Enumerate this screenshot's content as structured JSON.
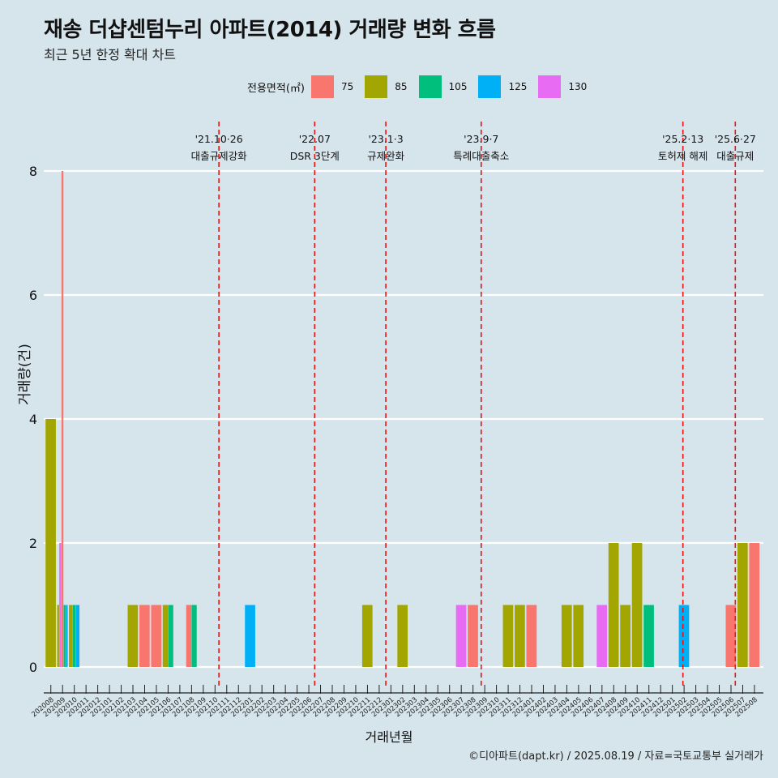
{
  "header": {
    "title": "재송 더샵센텀누리 아파트(2014) 거래량 변화 흐름",
    "subtitle": "최근 5년 한정 확대 차트"
  },
  "legend": {
    "title": "전용면적(㎡)",
    "items": [
      {
        "label": "75",
        "color": "#f8766d"
      },
      {
        "label": "85",
        "color": "#a3a500"
      },
      {
        "label": "105",
        "color": "#00bf7d"
      },
      {
        "label": "125",
        "color": "#00b0f6"
      },
      {
        "label": "130",
        "color": "#e76bf3"
      }
    ]
  },
  "caption": "©디아파트(dapt.kr) / 2025.08.19 / 자료=국토교통부 실거래가",
  "chart_data": {
    "type": "bar",
    "xlabel": "거래년월",
    "ylabel": "거래량(건)",
    "ylim": [
      0,
      8
    ],
    "yticks": [
      0,
      2,
      4,
      6,
      8
    ],
    "grid": true,
    "legend_position": "top",
    "categories": [
      "202008",
      "202009",
      "202010",
      "202011",
      "202012",
      "202101",
      "202102",
      "202103",
      "202104",
      "202105",
      "202106",
      "202107",
      "202108",
      "202109",
      "202110",
      "202111",
      "202112",
      "202201",
      "202202",
      "202203",
      "202204",
      "202205",
      "202206",
      "202207",
      "202208",
      "202209",
      "202210",
      "202211",
      "202212",
      "202301",
      "202302",
      "202303",
      "202304",
      "202305",
      "202306",
      "202307",
      "202308",
      "202309",
      "202310",
      "202311",
      "202312",
      "202401",
      "202402",
      "202403",
      "202404",
      "202405",
      "202406",
      "202407",
      "202408",
      "202409",
      "202410",
      "202411",
      "202412",
      "202501",
      "202502",
      "202503",
      "202504",
      "202505",
      "202506",
      "202507",
      "202508"
    ],
    "bars": [
      {
        "month": "202008",
        "segments": [
          {
            "area": "85",
            "value": 4
          }
        ]
      },
      {
        "month": "202009",
        "segments": [
          {
            "area": "85",
            "value": 1
          },
          {
            "area": "130",
            "value": 2
          },
          {
            "area": "75",
            "value": 8
          },
          {
            "area": "105",
            "value": 1
          },
          {
            "area": "125",
            "value": 1
          }
        ]
      },
      {
        "month": "202010",
        "segments": [
          {
            "area": "85",
            "value": 1
          },
          {
            "area": "105",
            "value": 1
          },
          {
            "area": "125",
            "value": 1
          }
        ]
      },
      {
        "month": "202103",
        "segments": [
          {
            "area": "85",
            "value": 1
          }
        ]
      },
      {
        "month": "202104",
        "segments": [
          {
            "area": "75",
            "value": 1
          }
        ]
      },
      {
        "month": "202105",
        "segments": [
          {
            "area": "75",
            "value": 1
          }
        ]
      },
      {
        "month": "202106",
        "segments": [
          {
            "area": "85",
            "value": 1
          },
          {
            "area": "105",
            "value": 1
          }
        ]
      },
      {
        "month": "202108",
        "segments": [
          {
            "area": "75",
            "value": 1
          },
          {
            "area": "105",
            "value": 1
          }
        ]
      },
      {
        "month": "202201",
        "segments": [
          {
            "area": "125",
            "value": 1
          }
        ]
      },
      {
        "month": "202211",
        "segments": [
          {
            "area": "85",
            "value": 1
          }
        ]
      },
      {
        "month": "202302",
        "segments": [
          {
            "area": "85",
            "value": 1
          }
        ]
      },
      {
        "month": "202307",
        "segments": [
          {
            "area": "130",
            "value": 1
          }
        ]
      },
      {
        "month": "202308",
        "segments": [
          {
            "area": "75",
            "value": 1
          }
        ]
      },
      {
        "month": "202311",
        "segments": [
          {
            "area": "85",
            "value": 1
          }
        ]
      },
      {
        "month": "202312",
        "segments": [
          {
            "area": "85",
            "value": 1
          }
        ]
      },
      {
        "month": "202401",
        "segments": [
          {
            "area": "75",
            "value": 1
          }
        ]
      },
      {
        "month": "202404",
        "segments": [
          {
            "area": "85",
            "value": 1
          }
        ]
      },
      {
        "month": "202405",
        "segments": [
          {
            "area": "85",
            "value": 1
          }
        ]
      },
      {
        "month": "202407",
        "segments": [
          {
            "area": "130",
            "value": 1
          }
        ]
      },
      {
        "month": "202408",
        "segments": [
          {
            "area": "85",
            "value": 2
          }
        ]
      },
      {
        "month": "202409",
        "segments": [
          {
            "area": "85",
            "value": 1
          }
        ]
      },
      {
        "month": "202410",
        "segments": [
          {
            "area": "85",
            "value": 2
          }
        ]
      },
      {
        "month": "202411",
        "segments": [
          {
            "area": "105",
            "value": 1
          }
        ]
      },
      {
        "month": "202502",
        "segments": [
          {
            "area": "125",
            "value": 1
          }
        ]
      },
      {
        "month": "202506",
        "segments": [
          {
            "area": "75",
            "value": 1
          }
        ]
      },
      {
        "month": "202507",
        "segments": [
          {
            "area": "85",
            "value": 2
          }
        ]
      },
      {
        "month": "202508",
        "segments": [
          {
            "area": "75",
            "value": 2
          }
        ]
      }
    ],
    "annotations": [
      {
        "date": "2021-10-26",
        "line1": "'21.10·26",
        "line2": "대출규제강화"
      },
      {
        "date": "2022-07-01",
        "line1": "'22.07",
        "line2": "DSR 3단계"
      },
      {
        "date": "2023-01-03",
        "line1": "'23.1·3",
        "line2": "규제완화"
      },
      {
        "date": "2023-09-07",
        "line1": "'23.9·7",
        "line2": "특례대출축소"
      },
      {
        "date": "2025-02-13",
        "line1": "'25.2·13",
        "line2": "토허제 해제"
      },
      {
        "date": "2025-06-27",
        "line1": "'25.6·27",
        "line2": "대출규제"
      }
    ]
  }
}
